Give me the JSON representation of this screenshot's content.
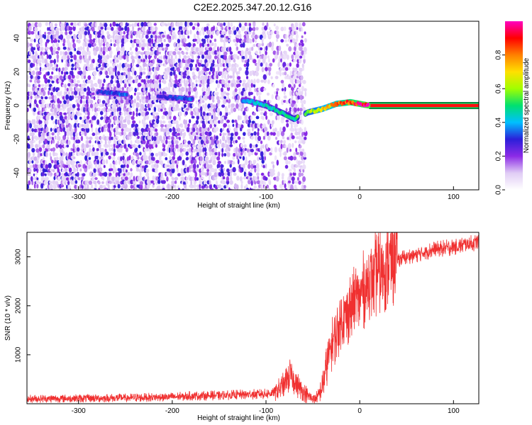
{
  "title": "C2E2.2025.347.20.12.G16",
  "chart_data": [
    {
      "type": "heatmap",
      "name": "spectrogram",
      "xlabel": "Height of straight line (km)",
      "ylabel": "Frequency (Hz)",
      "xlim": [
        -355,
        127
      ],
      "ylim": [
        -50,
        50
      ],
      "xticks": [
        -300,
        -200,
        -100,
        0,
        100
      ],
      "yticks": [
        -40,
        -20,
        0,
        20,
        40
      ],
      "colorbar": {
        "label": "Normalized spectral amplitude",
        "range": [
          0,
          1
        ],
        "ticks": [
          0.0,
          0.2,
          0.4,
          0.6,
          0.8
        ],
        "colors": [
          "#ffffff",
          "#e0ccf5",
          "#8c2be6",
          "#2b1fd9",
          "#00c0ff",
          "#00e070",
          "#a0ff00",
          "#ffe000",
          "#ff8000",
          "#ff0000",
          "#ff00c0"
        ]
      },
      "ridge": [
        {
          "x": -280,
          "y": 8,
          "a": 0.3
        },
        {
          "x": -255,
          "y": 7,
          "a": 0.35
        },
        {
          "x": -210,
          "y": 5,
          "a": 0.3
        },
        {
          "x": -185,
          "y": 4,
          "a": 0.35
        },
        {
          "x": -120,
          "y": 3,
          "a": 0.4
        },
        {
          "x": -100,
          "y": 0,
          "a": 0.45
        },
        {
          "x": -80,
          "y": -5,
          "a": 0.5
        },
        {
          "x": -70,
          "y": -8,
          "a": 0.5
        },
        {
          "x": -55,
          "y": -4,
          "a": 0.6
        },
        {
          "x": -40,
          "y": -2,
          "a": 0.7
        },
        {
          "x": -25,
          "y": 1,
          "a": 0.8
        },
        {
          "x": -10,
          "y": 2,
          "a": 0.9
        },
        {
          "x": 0,
          "y": 1,
          "a": 0.95
        },
        {
          "x": 10,
          "y": 0,
          "a": 1.0
        },
        {
          "x": 127,
          "y": 0,
          "a": 1.0
        }
      ]
    },
    {
      "type": "line",
      "name": "snr",
      "xlabel": "Height of straight line (km)",
      "ylabel": "SNR (10 * v/v)",
      "xlim": [
        -355,
        127
      ],
      "ylim": [
        0,
        3500
      ],
      "xticks": [
        -300,
        -200,
        -100,
        0,
        100
      ],
      "yticks": [
        1000,
        2000,
        3000
      ],
      "color": "#f03030",
      "series": [
        {
          "name": "SNR",
          "x": [
            -355,
            -300,
            -250,
            -200,
            -180,
            -150,
            -120,
            -100,
            -90,
            -80,
            -75,
            -70,
            -65,
            -60,
            -55,
            -50,
            -45,
            -40,
            -35,
            -30,
            -25,
            -20,
            -15,
            -10,
            -5,
            0,
            5,
            10,
            20,
            30,
            40,
            50,
            60,
            80,
            100,
            127
          ],
          "y": [
            100,
            110,
            120,
            140,
            160,
            170,
            190,
            200,
            230,
            400,
            600,
            500,
            350,
            250,
            150,
            110,
            120,
            350,
            800,
            1200,
            1450,
            1650,
            1800,
            1950,
            2100,
            2200,
            2350,
            2500,
            2700,
            2850,
            2950,
            3000,
            3050,
            3150,
            3200,
            3300
          ]
        }
      ]
    }
  ]
}
